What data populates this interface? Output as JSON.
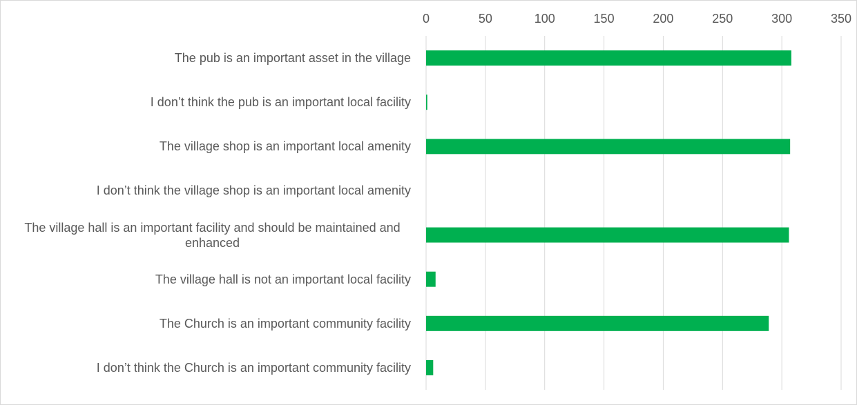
{
  "chart_data": {
    "type": "bar",
    "orientation": "horizontal",
    "categories": [
      "The pub is an important asset in the village",
      "I don’t think the pub is an important local facility",
      "The village shop is an important local amenity",
      "I don’t think the village shop is an important local amenity",
      "The village hall is an important facility and should be maintained and enhanced",
      "The village hall is not an important local facility",
      "The Church is an important community facility",
      "I don’t think the Church is an important community facility"
    ],
    "values": [
      308,
      1,
      307,
      0,
      306,
      8,
      289,
      6
    ],
    "color": "#00b050",
    "xlim": [
      0,
      350
    ],
    "xticks": [
      0,
      50,
      100,
      150,
      200,
      250,
      300,
      350
    ],
    "grid": true
  }
}
